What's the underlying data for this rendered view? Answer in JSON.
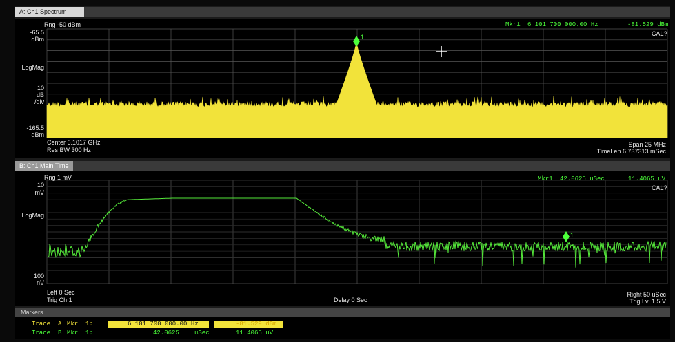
{
  "pane_a": {
    "tab": "A: Ch1 Spectrum",
    "range": "Rng -50 dBm",
    "marker_label": "Mkr1",
    "marker_x": "6 101 700 000.00 Hz",
    "marker_y": "-81.529 dBm",
    "cal": "CAL?",
    "y_top": "-65.5",
    "y_top_unit": "dBm",
    "y_mode": "LogMag",
    "y_scale": "10",
    "y_scale_unit": "dB",
    "y_scale_div": "/div",
    "y_bottom": "-165.5",
    "y_bottom_unit": "dBm",
    "center": "Center 6.1017 GHz",
    "res_bw": "Res BW 300  Hz",
    "span": "Span 25 MHz",
    "time_len": "TimeLen 6.737313 mSec",
    "marker_number": "1"
  },
  "pane_b": {
    "tab": "B: Ch1 Main Time",
    "range": "Rng 1 mV",
    "marker_label": "Mkr1",
    "marker_x": "42.0625 uSec",
    "marker_y": "11.4065 uV",
    "cal": "CAL?",
    "y_top": "10",
    "y_top_unit": "mV",
    "y_mode": "LogMag",
    "y_bottom": "100",
    "y_bottom_unit": "nV",
    "left": "Left 0 Sec",
    "trigger": "Trig Ch 1",
    "delay": "Delay 0 Sec",
    "right": "Right 50 uSec",
    "trig_level": "Trig Lvl 1.5  V",
    "marker_number": "1"
  },
  "markers": {
    "title": "Markers",
    "rows": [
      [
        "Trace",
        "A",
        "Mkr",
        "1:",
        "6 101 700 000.00 Hz",
        "-81.529 dBm"
      ],
      [
        "Trace",
        "B",
        "Mkr",
        "1:",
        "42.0625",
        "uSec",
        "11.4065 uV"
      ]
    ]
  }
}
